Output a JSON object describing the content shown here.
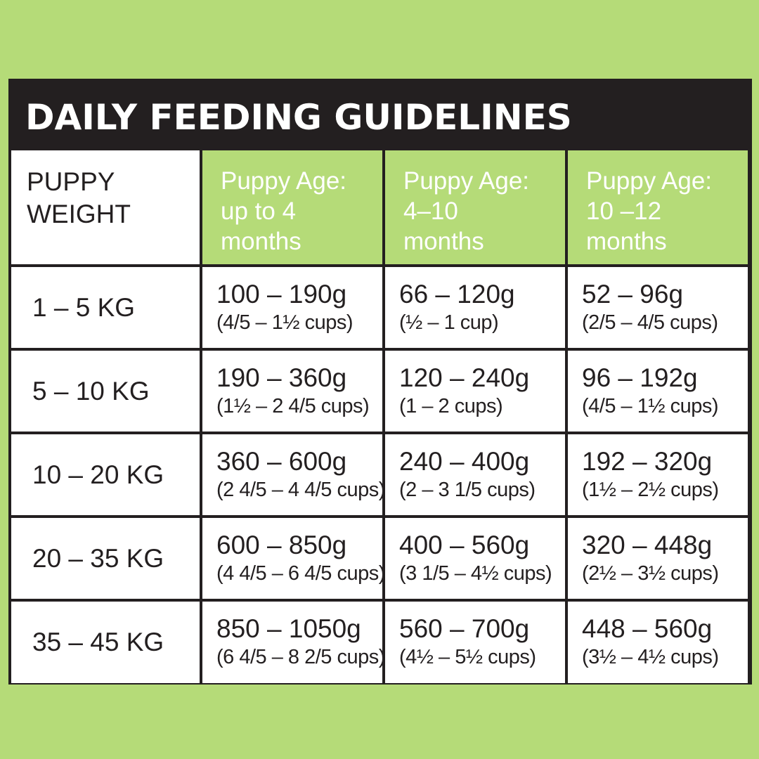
{
  "title": "DAILY FEEDING GUIDELINES",
  "colors": {
    "background": "#b5db78",
    "title_bar": "#231f20",
    "header_green": "#b5db78",
    "cell_bg": "#ffffff",
    "text": "#231f20"
  },
  "header": {
    "weight": {
      "line1": "PUPPY",
      "line2": "WEIGHT"
    },
    "ages": [
      {
        "line1": "Puppy Age:",
        "line2": "up to 4",
        "line3": "months"
      },
      {
        "line1": "Puppy Age:",
        "line2": "4–10",
        "line3": "months"
      },
      {
        "line1": "Puppy Age:",
        "line2": "10 –12",
        "line3": "months"
      }
    ]
  },
  "rows": [
    {
      "weight": "1 – 5 KG",
      "amounts": [
        {
          "grams": "100 – 190g",
          "cups": "(4/5 – 1½ cups)"
        },
        {
          "grams": "66 – 120g",
          "cups": "(½ – 1 cup)"
        },
        {
          "grams": "52 – 96g",
          "cups": "(2/5 – 4/5 cups)"
        }
      ]
    },
    {
      "weight": "5 – 10 KG",
      "amounts": [
        {
          "grams": "190 – 360g",
          "cups": "(1½ – 2 4/5 cups)"
        },
        {
          "grams": "120 – 240g",
          "cups": "(1 – 2 cups)"
        },
        {
          "grams": "96 – 192g",
          "cups": "(4/5 – 1½ cups)"
        }
      ]
    },
    {
      "weight": "10 – 20 KG",
      "amounts": [
        {
          "grams": "360 – 600g",
          "cups": "(2 4/5 – 4 4/5 cups)"
        },
        {
          "grams": "240 – 400g",
          "cups": "(2 – 3 1/5 cups)"
        },
        {
          "grams": "192 – 320g",
          "cups": "(1½ – 2½ cups)"
        }
      ]
    },
    {
      "weight": "20 – 35 KG",
      "amounts": [
        {
          "grams": "600 – 850g",
          "cups": "(4 4/5 – 6 4/5 cups)"
        },
        {
          "grams": "400 – 560g",
          "cups": "(3 1/5 – 4½ cups)"
        },
        {
          "grams": "320 – 448g",
          "cups": "(2½ – 3½ cups)"
        }
      ]
    },
    {
      "weight": "35 – 45 KG",
      "amounts": [
        {
          "grams": "850 – 1050g",
          "cups": "(6 4/5 – 8 2/5 cups)"
        },
        {
          "grams": "560 – 700g",
          "cups": "(4½ – 5½ cups)"
        },
        {
          "grams": "448 – 560g",
          "cups": "(3½ – 4½ cups)"
        }
      ]
    }
  ]
}
